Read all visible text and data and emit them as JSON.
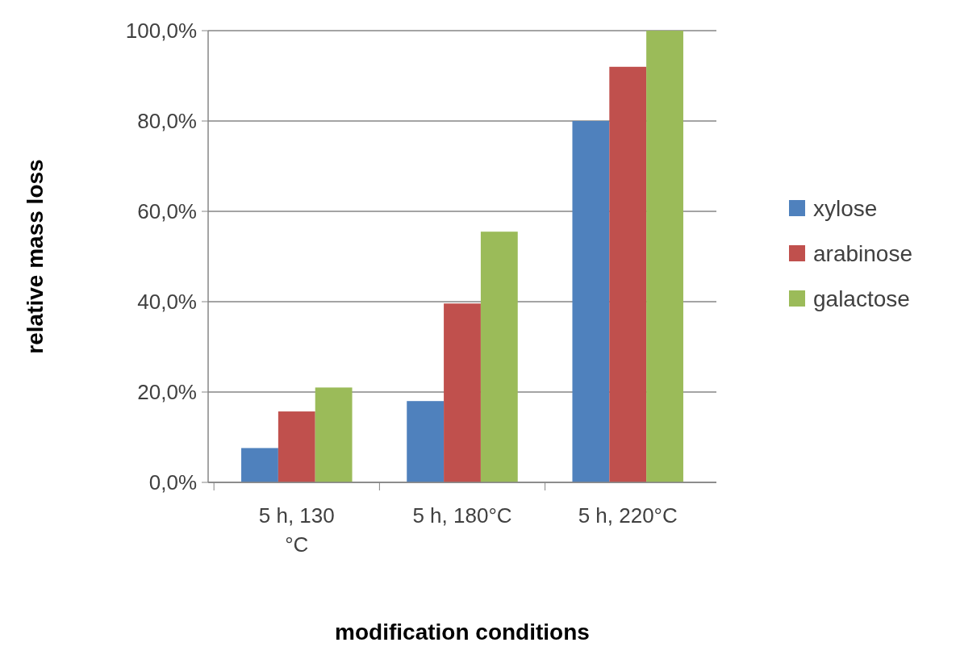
{
  "chart_data": {
    "type": "bar",
    "xlabel": "modification conditions",
    "ylabel": "relative mass loss",
    "categories": [
      "5 h, 130 °C",
      "5 h, 180°C",
      "5 h, 220°C"
    ],
    "series": [
      {
        "name": "xylose",
        "color": "#4f81bd",
        "values": [
          7.6,
          18,
          80
        ]
      },
      {
        "name": "arabinose",
        "color": "#c0504d",
        "values": [
          15.7,
          39.6,
          92
        ]
      },
      {
        "name": "galactose",
        "color": "#9bbb59",
        "values": [
          21,
          55.5,
          100
        ]
      }
    ],
    "ylim": [
      0,
      100
    ],
    "yticks": [
      {
        "value": 0,
        "label": "0,0%"
      },
      {
        "value": 20,
        "label": "20,0%"
      },
      {
        "value": 40,
        "label": "40,0%"
      },
      {
        "value": 60,
        "label": "60,0%"
      },
      {
        "value": 80,
        "label": "80,0%"
      },
      {
        "value": 100,
        "label": "100,0%"
      }
    ],
    "grid": "y",
    "legend": "right"
  }
}
